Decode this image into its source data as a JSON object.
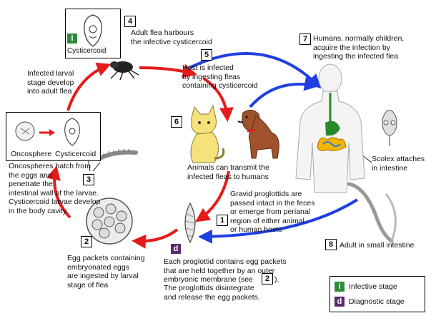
{
  "colors": {
    "red_arrow": "#e51b1b",
    "blue_arrow": "#1f3fe0",
    "infective_badge": "#2e8b3a",
    "diagnostic_badge": "#5a2a6a"
  },
  "steps": {
    "s1": {
      "num": "1",
      "text": "Gravid proglottids are\npassed intact in the feces\nor emerge from perianal\nregion of either animal\nor human hosts"
    },
    "s2": {
      "num": "2",
      "text": "Egg packets containing\nembryonated eggs\nare ingested by larval\nstage of flea"
    },
    "s3": {
      "num": "3",
      "text": "Oncospheres hatch from\nthe eggs and\npenetrate the\nintestinal wall of the larvae.\nCysticercoid larvae develop\nin the body cavity."
    },
    "s4": {
      "num": "4",
      "text": "Adult flea harbours\nthe infective cysticercoid"
    },
    "s5": {
      "num": "5",
      "text": "Host is infected\nby ingesting fleas\ncontaining cysticercoid"
    },
    "s6": {
      "num": "6",
      "text": "Animals can transmit the\ninfected fleas to humans"
    },
    "s7": {
      "num": "7",
      "text": "Humans, normally children,\nacquire the infection by\ningesting the infected flea"
    },
    "s8": {
      "num": "8",
      "text": "Adult in small intestine"
    }
  },
  "larval_stage_text": "Infected larval\nstage develop\ninto adult flea",
  "egg_packet_text": "Each proglottid contains egg packets\nthat are held together by an outer\nembryonic membrane (see",
  "egg_packet_ref": "2",
  "egg_packet_close": ").",
  "egg_packet_text2": "The proglottids disintegrate\nand release the egg packets.",
  "scolex_text": "Scolex attaches\nin intestine",
  "cysticercoid_label": "Cysticercoid",
  "oncosphere_label": "Oncosphere",
  "cysticercoid_label2": "Cysticercoid",
  "legend": {
    "infective_letter": "i",
    "infective_label": "Infective stage",
    "diagnostic_letter": "d",
    "diagnostic_label": "Diagnostic stage"
  }
}
